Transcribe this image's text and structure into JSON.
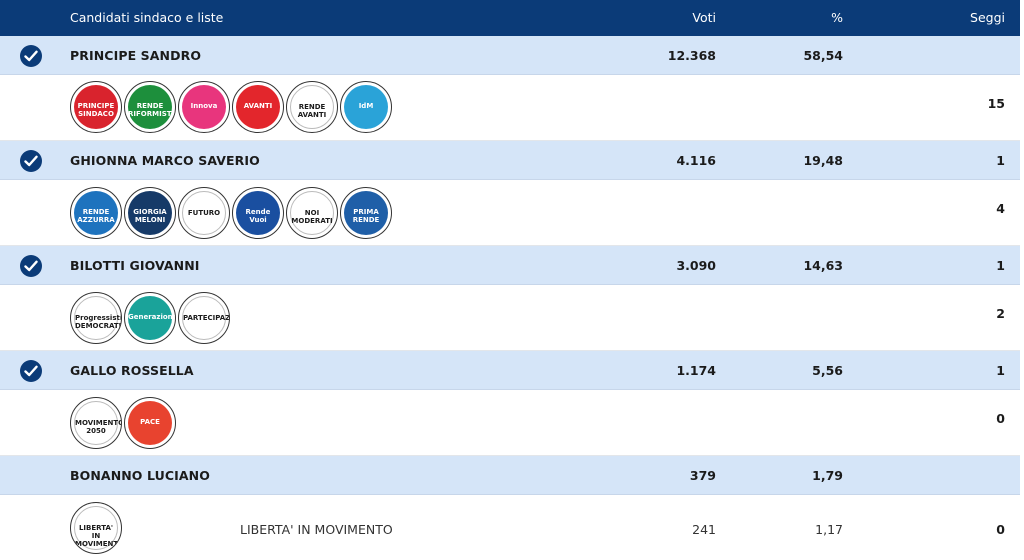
{
  "header": {
    "candidates_label": "Candidati sindaco e liste",
    "votes_label": "Voti",
    "percent_label": "%",
    "seats_label": "Seggi"
  },
  "candidates": [
    {
      "name": "PRINCIPE SANDRO",
      "votes": "12.368",
      "percent": "58,54",
      "seats": "",
      "elected": true,
      "list_seats": "15",
      "logos": [
        {
          "icon": "principe-sindaco-logo",
          "color": "#d9232d",
          "text": "PRINCIPE SINDACO"
        },
        {
          "icon": "rende-riformista-logo",
          "color": "#1d8f3c",
          "text": "RENDE RIFORMISTA"
        },
        {
          "icon": "innova-logo",
          "color": "#e8357d",
          "text": "Innova"
        },
        {
          "icon": "avanti-rende-libera-logo",
          "color": "#e3262c",
          "text": "AVANTI"
        },
        {
          "icon": "rende-avanti-horse-logo",
          "color": "#ffffff",
          "text": "RENDE AVANTI"
        },
        {
          "icon": "idm-logo",
          "color": "#2aa3d8",
          "text": "IdM"
        }
      ]
    },
    {
      "name": "GHIONNA MARCO SAVERIO",
      "votes": "4.116",
      "percent": "19,48",
      "seats": "1",
      "elected": true,
      "list_seats": "4",
      "logos": [
        {
          "icon": "rende-azzurra-logo",
          "color": "#1e73be",
          "text": "RENDE AZZURRA"
        },
        {
          "icon": "fratelli-italia-logo",
          "color": "#163a68",
          "text": "GIORGIA MELONI"
        },
        {
          "icon": "futuro-logo",
          "color": "#ffffff",
          "text": "FUTURO"
        },
        {
          "icon": "rende-nel-cuore-logo",
          "color": "#1a4fa0",
          "text": "Rende Vuoi"
        },
        {
          "icon": "noi-moderati-logo",
          "color": "#ffffff",
          "text": "NOI MODERATI"
        },
        {
          "icon": "prima-rende-logo",
          "color": "#1f5fa8",
          "text": "PRIMA RENDE"
        }
      ]
    },
    {
      "name": "BILOTTI GIOVANNI",
      "votes": "3.090",
      "percent": "14,63",
      "seats": "1",
      "elected": true,
      "list_seats": "2",
      "logos": [
        {
          "icon": "progressisti-democratici-logo",
          "color": "#ffffff",
          "text": "Progressisti DEMOCRATICI"
        },
        {
          "icon": "generazione-logo",
          "color": "#1aa39a",
          "text": "Generazione"
        },
        {
          "icon": "partecipazione-tree-logo",
          "color": "#ffffff",
          "text": "PARTECIPAZIONE"
        }
      ]
    },
    {
      "name": "GALLO ROSSELLA",
      "votes": "1.174",
      "percent": "5,56",
      "seats": "1",
      "elected": true,
      "list_seats": "0",
      "logos": [
        {
          "icon": "movimento-2050-logo",
          "color": "#ffffff",
          "text": "MOVIMENTO 2050"
        },
        {
          "icon": "sinistra-pace-logo",
          "color": "#e8432f",
          "text": "PACE"
        }
      ]
    },
    {
      "name": "BONANNO LUCIANO",
      "votes": "379",
      "percent": "1,79",
      "seats": "",
      "elected": false,
      "list_seats": "0",
      "list_name": "LIBERTA' IN MOVIMENTO",
      "list_votes": "241",
      "list_percent": "1,17",
      "logos": [
        {
          "icon": "liberta-in-movimento-logo",
          "color": "#ffffff",
          "text": "LIBERTA' IN MOVIMENTO"
        }
      ]
    }
  ]
}
